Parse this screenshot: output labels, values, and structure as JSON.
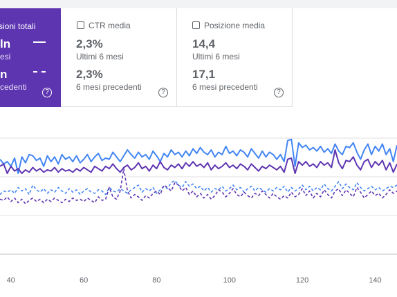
{
  "cards": {
    "impressions": {
      "label": "sioni totali",
      "current_value": "ln",
      "current_caption": "esi",
      "previous_value": "n",
      "previous_caption": "cedenti",
      "help": "?"
    },
    "ctr": {
      "label": "CTR media",
      "current_value": "2,3%",
      "current_caption": "Ultimi 6 mesi",
      "previous_value": "2,3%",
      "previous_caption": "6 mesi precedenti",
      "help": "?"
    },
    "position": {
      "label": "Posizione media",
      "current_value": "14,4",
      "current_caption": "Ultimi 6 mesi",
      "previous_value": "17,1",
      "previous_caption": "6 mesi precedenti",
      "help": "?"
    }
  },
  "colors": {
    "impressions_card": "#5e35b1",
    "clicks_line": "#4285f4",
    "impressions_line": "#5e35b1",
    "gridline": "#e0e0e0",
    "axis_label": "#5f6368"
  },
  "chart_data": {
    "type": "line",
    "x_ticks": [
      40,
      60,
      80,
      100,
      120,
      140
    ],
    "xlim": [
      37,
      146
    ],
    "ylim": [
      0,
      100
    ],
    "grid": true,
    "legend": "none",
    "series": [
      {
        "line_style": "solid",
        "color": "#4285f4",
        "x": [
          37,
          38,
          39,
          40,
          41,
          42,
          43,
          44,
          45,
          46,
          47,
          48,
          49,
          50,
          51,
          52,
          53,
          54,
          55,
          56,
          57,
          58,
          59,
          60,
          61,
          62,
          63,
          64,
          65,
          66,
          67,
          68,
          69,
          70,
          71,
          72,
          73,
          74,
          75,
          76,
          77,
          78,
          79,
          80,
          81,
          82,
          83,
          84,
          85,
          86,
          87,
          88,
          89,
          90,
          91,
          92,
          93,
          94,
          95,
          96,
          97,
          98,
          99,
          100,
          101,
          102,
          103,
          104,
          105,
          106,
          107,
          108,
          109,
          110,
          111,
          112,
          113,
          114,
          115,
          116,
          117,
          118,
          119,
          120,
          121,
          122,
          123,
          124,
          125,
          126,
          127,
          128,
          129,
          130,
          131,
          132,
          133,
          134,
          135,
          136,
          137,
          138,
          139,
          140,
          141,
          142,
          143,
          144,
          145,
          146
        ],
        "y": [
          82,
          78,
          80,
          76,
          83,
          70,
          84,
          79,
          86,
          85,
          81,
          83,
          76,
          85,
          80,
          84,
          78,
          86,
          82,
          84,
          80,
          85,
          79,
          82,
          86,
          80,
          84,
          87,
          81,
          83,
          82,
          88,
          84,
          80,
          85,
          90,
          86,
          83,
          88,
          84,
          86,
          82,
          89,
          85,
          80,
          87,
          84,
          90,
          86,
          88,
          84,
          89,
          85,
          91,
          87,
          92,
          88,
          86,
          90,
          84,
          88,
          86,
          93,
          87,
          89,
          85,
          90,
          88,
          84,
          91,
          87,
          83,
          89,
          84,
          88,
          86,
          82,
          86,
          80,
          98,
          99,
          76,
          96,
          92,
          94,
          90,
          92,
          89,
          93,
          88,
          91,
          87,
          95,
          89,
          86,
          93,
          92,
          96,
          88,
          82,
          90,
          95,
          86,
          93,
          89,
          95,
          86,
          91,
          80,
          94
        ]
      },
      {
        "line_style": "solid",
        "color": "#5e35b1",
        "x": [
          37,
          38,
          39,
          40,
          41,
          42,
          43,
          44,
          45,
          46,
          47,
          48,
          49,
          50,
          51,
          52,
          53,
          54,
          55,
          56,
          57,
          58,
          59,
          60,
          61,
          62,
          63,
          64,
          65,
          66,
          67,
          68,
          69,
          70,
          71,
          72,
          73,
          74,
          75,
          76,
          77,
          78,
          79,
          80,
          81,
          82,
          83,
          84,
          85,
          86,
          87,
          88,
          89,
          90,
          91,
          92,
          93,
          94,
          95,
          96,
          97,
          98,
          99,
          100,
          101,
          102,
          103,
          104,
          105,
          106,
          107,
          108,
          109,
          110,
          111,
          112,
          113,
          114,
          115,
          116,
          117,
          118,
          119,
          120,
          121,
          122,
          123,
          124,
          125,
          126,
          127,
          128,
          129,
          130,
          131,
          132,
          133,
          134,
          135,
          136,
          137,
          138,
          139,
          140,
          141,
          142,
          143,
          144,
          145,
          146
        ],
        "y": [
          76,
          78,
          70,
          76,
          72,
          74,
          70,
          73,
          71,
          75,
          72,
          74,
          71,
          73,
          72,
          75,
          71,
          74,
          72,
          73,
          71,
          74,
          72,
          75,
          73,
          71,
          76,
          74,
          72,
          76,
          74,
          78,
          74,
          71,
          75,
          77,
          73,
          75,
          79,
          74,
          76,
          72,
          77,
          74,
          80,
          75,
          73,
          77,
          75,
          78,
          74,
          79,
          76,
          80,
          76,
          78,
          75,
          79,
          73,
          77,
          74,
          76,
          79,
          75,
          77,
          74,
          78,
          76,
          73,
          78,
          75,
          72,
          76,
          74,
          77,
          75,
          73,
          76,
          71,
          82,
          83,
          70,
          80,
          77,
          80,
          76,
          78,
          75,
          80,
          77,
          79,
          75,
          90,
          79,
          74,
          81,
          80,
          84,
          77,
          73,
          80,
          82,
          75,
          80,
          77,
          81,
          73,
          79,
          71,
          78
        ]
      },
      {
        "line_style": "dashed",
        "color": "#4285f4",
        "x": [
          37,
          38,
          39,
          40,
          41,
          42,
          43,
          44,
          45,
          46,
          47,
          48,
          49,
          50,
          51,
          52,
          53,
          54,
          55,
          56,
          57,
          58,
          59,
          60,
          61,
          62,
          63,
          64,
          65,
          66,
          67,
          68,
          69,
          70,
          71,
          72,
          73,
          74,
          75,
          76,
          77,
          78,
          79,
          80,
          81,
          82,
          83,
          84,
          85,
          86,
          87,
          88,
          89,
          90,
          91,
          92,
          93,
          94,
          95,
          96,
          97,
          98,
          99,
          100,
          101,
          102,
          103,
          104,
          105,
          106,
          107,
          108,
          109,
          110,
          111,
          112,
          113,
          114,
          115,
          116,
          117,
          118,
          119,
          120,
          121,
          122,
          123,
          124,
          125,
          126,
          127,
          128,
          129,
          130,
          131,
          132,
          133,
          134,
          135,
          136,
          137,
          138,
          139,
          140,
          141,
          142,
          143,
          144,
          145,
          146
        ],
        "y": [
          52,
          55,
          54,
          56,
          53,
          58,
          55,
          57,
          52,
          60,
          56,
          54,
          57,
          53,
          56,
          54,
          58,
          55,
          53,
          57,
          54,
          56,
          52,
          55,
          57,
          54,
          53,
          56,
          55,
          52,
          58,
          55,
          54,
          57,
          55,
          53,
          56,
          58,
          60,
          54,
          57,
          55,
          58,
          53,
          56,
          59,
          57,
          62,
          64,
          60,
          58,
          63,
          59,
          61,
          57,
          59,
          55,
          58,
          54,
          57,
          56,
          59,
          55,
          57,
          60,
          56,
          58,
          54,
          57,
          59,
          55,
          58,
          56,
          54,
          57,
          55,
          58,
          56,
          59,
          54,
          58,
          55,
          57,
          60,
          56,
          59,
          55,
          58,
          56,
          61,
          57,
          55,
          59,
          63,
          57,
          61,
          58,
          56,
          62,
          58,
          55,
          57,
          59,
          56,
          58,
          55,
          57,
          59,
          58,
          60
        ]
      },
      {
        "line_style": "dashed",
        "color": "#5e35b1",
        "x": [
          37,
          38,
          39,
          40,
          41,
          42,
          43,
          44,
          45,
          46,
          47,
          48,
          49,
          50,
          51,
          52,
          53,
          54,
          55,
          56,
          57,
          58,
          59,
          60,
          61,
          62,
          63,
          64,
          65,
          66,
          67,
          68,
          69,
          70,
          71,
          72,
          73,
          74,
          75,
          76,
          77,
          78,
          79,
          80,
          81,
          82,
          83,
          84,
          85,
          86,
          87,
          88,
          89,
          90,
          91,
          92,
          93,
          94,
          95,
          96,
          97,
          98,
          99,
          100,
          101,
          102,
          103,
          104,
          105,
          106,
          107,
          108,
          109,
          110,
          111,
          112,
          113,
          114,
          115,
          116,
          117,
          118,
          119,
          120,
          121,
          122,
          123,
          124,
          125,
          126,
          127,
          128,
          129,
          130,
          131,
          132,
          133,
          134,
          135,
          136,
          137,
          138,
          139,
          140,
          141,
          142,
          143,
          144,
          145,
          146
        ],
        "y": [
          48,
          47,
          50,
          46,
          49,
          45,
          48,
          44,
          47,
          49,
          46,
          48,
          45,
          48,
          46,
          49,
          47,
          45,
          48,
          46,
          49,
          47,
          48,
          46,
          49,
          47,
          45,
          50,
          47,
          48,
          58,
          50,
          48,
          55,
          74,
          55,
          49,
          52,
          50,
          47,
          51,
          49,
          53,
          55,
          52,
          60,
          58,
          55,
          62,
          60,
          55,
          58,
          52,
          55,
          50,
          53,
          49,
          52,
          48,
          51,
          56,
          54,
          50,
          53,
          57,
          52,
          50,
          54,
          51,
          49,
          53,
          51,
          55,
          52,
          49,
          53,
          50,
          48,
          51,
          49,
          54,
          50,
          52,
          57,
          51,
          55,
          49,
          53,
          50,
          56,
          52,
          49,
          55,
          57,
          51,
          56,
          53,
          50,
          58,
          54,
          49,
          52,
          55,
          51,
          53,
          49,
          52,
          56,
          53,
          55
        ]
      }
    ]
  }
}
